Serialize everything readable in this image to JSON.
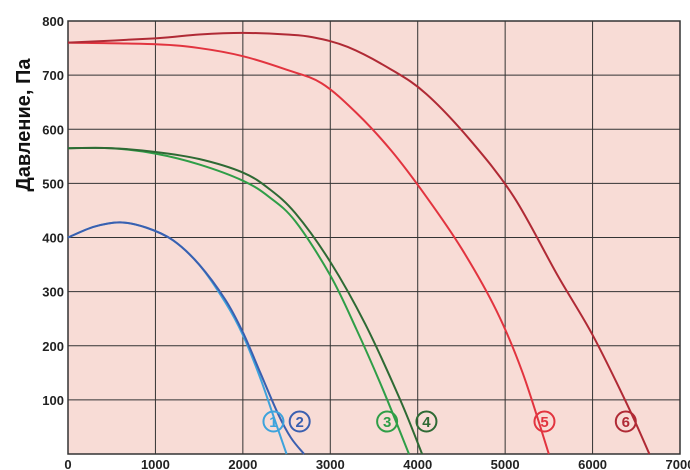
{
  "chart_data": {
    "type": "line",
    "title": "",
    "xlabel": "",
    "ylabel": "Давление, Па",
    "xlim": [
      0,
      7000
    ],
    "ylim": [
      0,
      800
    ],
    "x_ticks": [
      0,
      1000,
      2000,
      3000,
      4000,
      5000,
      6000,
      7000
    ],
    "y_ticks": [
      100,
      200,
      300,
      400,
      500,
      600,
      700,
      800
    ],
    "grid": true,
    "background": "#f8dcd6",
    "series": [
      {
        "marker": "1",
        "color": "#3ea3dc",
        "x": [
          0,
          300,
          600,
          900,
          1200,
          1500,
          1800,
          2000,
          2200,
          2350,
          2500
        ],
        "y": [
          400,
          420,
          428,
          418,
          395,
          350,
          280,
          220,
          140,
          70,
          0
        ]
      },
      {
        "marker": "2",
        "color": "#3a5fb0",
        "x": [
          0,
          300,
          600,
          900,
          1200,
          1500,
          1800,
          2000,
          2200,
          2400,
          2550,
          2700
        ],
        "y": [
          400,
          420,
          428,
          418,
          395,
          350,
          285,
          225,
          150,
          75,
          30,
          0
        ]
      },
      {
        "marker": "3",
        "color": "#2f9e47",
        "x": [
          0,
          500,
          1000,
          1500,
          2000,
          2300,
          2600,
          3000,
          3300,
          3600,
          3900
        ],
        "y": [
          565,
          565,
          555,
          535,
          505,
          475,
          430,
          330,
          230,
          120,
          0
        ]
      },
      {
        "marker": "4",
        "color": "#2e6a34",
        "x": [
          0,
          500,
          1000,
          1500,
          2000,
          2300,
          2600,
          3000,
          3400,
          3800,
          4050
        ],
        "y": [
          565,
          565,
          558,
          545,
          520,
          490,
          445,
          355,
          240,
          100,
          0
        ]
      },
      {
        "marker": "5",
        "color": "#e2343f",
        "x": [
          0,
          1000,
          1500,
          2000,
          2500,
          2900,
          3300,
          3700,
          4100,
          4500,
          4900,
          5200,
          5500
        ],
        "y": [
          760,
          757,
          750,
          735,
          710,
          685,
          630,
          560,
          475,
          380,
          265,
          150,
          0
        ]
      },
      {
        "marker": "6",
        "color": "#b02a35",
        "x": [
          0,
          1000,
          1500,
          2000,
          2500,
          2800,
          3200,
          3700,
          4100,
          4600,
          5100,
          5600,
          6000,
          6400,
          6650
        ],
        "y": [
          760,
          768,
          775,
          778,
          775,
          770,
          752,
          710,
          665,
          580,
          475,
          330,
          220,
          90,
          0
        ]
      }
    ],
    "marker_positions": [
      {
        "marker": "1",
        "x": 2350,
        "y": 60
      },
      {
        "marker": "2",
        "x": 2650,
        "y": 60
      },
      {
        "marker": "3",
        "x": 3650,
        "y": 60
      },
      {
        "marker": "4",
        "x": 4100,
        "y": 60
      },
      {
        "marker": "5",
        "x": 5450,
        "y": 60
      },
      {
        "marker": "6",
        "x": 6380,
        "y": 60
      }
    ]
  }
}
